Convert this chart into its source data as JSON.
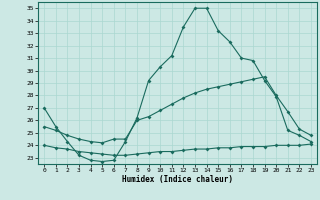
{
  "xlabel": "Humidex (Indice chaleur)",
  "bg_color": "#cce8e4",
  "line_color": "#1a6b5e",
  "grid_color": "#aad8d0",
  "xlim": [
    -0.5,
    23.5
  ],
  "ylim": [
    22.5,
    35.5
  ],
  "xticks": [
    0,
    1,
    2,
    3,
    4,
    5,
    6,
    7,
    8,
    9,
    10,
    11,
    12,
    13,
    14,
    15,
    16,
    17,
    18,
    19,
    20,
    21,
    22,
    23
  ],
  "yticks": [
    23,
    24,
    25,
    26,
    27,
    28,
    29,
    30,
    31,
    32,
    33,
    34,
    35
  ],
  "line1_x": [
    0,
    1,
    2,
    3,
    4,
    5,
    6,
    7,
    8,
    9,
    10,
    11,
    12,
    13,
    14,
    15,
    16,
    17,
    18,
    19,
    20,
    21,
    22,
    23
  ],
  "line1_y": [
    27.0,
    25.5,
    24.3,
    23.2,
    22.8,
    22.7,
    22.8,
    24.3,
    26.2,
    29.2,
    30.3,
    31.2,
    33.5,
    35.0,
    35.0,
    33.2,
    32.3,
    31.0,
    30.8,
    29.2,
    27.9,
    25.2,
    24.8,
    24.3
  ],
  "line2_x": [
    0,
    1,
    2,
    3,
    4,
    5,
    6,
    7,
    8,
    9,
    10,
    11,
    12,
    13,
    14,
    15,
    16,
    17,
    18,
    19,
    20,
    21,
    22,
    23
  ],
  "line2_y": [
    25.5,
    25.2,
    24.8,
    24.5,
    24.3,
    24.2,
    24.5,
    24.5,
    26.0,
    26.3,
    26.8,
    27.3,
    27.8,
    28.2,
    28.5,
    28.7,
    28.9,
    29.1,
    29.3,
    29.5,
    28.0,
    26.7,
    25.3,
    24.8
  ],
  "line3_x": [
    0,
    1,
    2,
    3,
    4,
    5,
    6,
    7,
    8,
    9,
    10,
    11,
    12,
    13,
    14,
    15,
    16,
    17,
    18,
    19,
    20,
    21,
    22,
    23
  ],
  "line3_y": [
    24.0,
    23.8,
    23.7,
    23.5,
    23.4,
    23.3,
    23.2,
    23.2,
    23.3,
    23.4,
    23.5,
    23.5,
    23.6,
    23.7,
    23.7,
    23.8,
    23.8,
    23.9,
    23.9,
    23.9,
    24.0,
    24.0,
    24.0,
    24.1
  ]
}
